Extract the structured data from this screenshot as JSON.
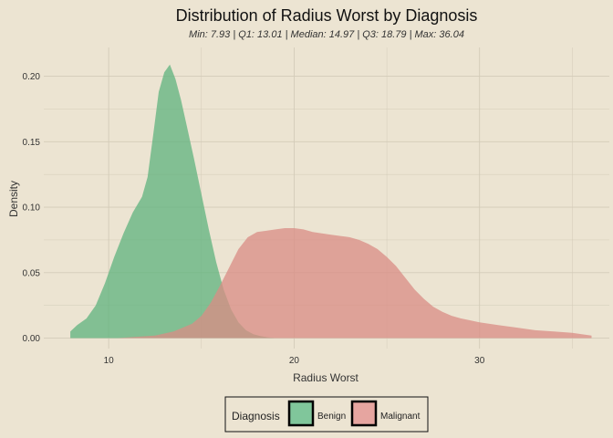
{
  "chart_data": {
    "type": "area",
    "title": "Distribution of Radius Worst by Diagnosis",
    "subtitle": "Min: 7.93 | Q1: 13.01 | Median: 14.97 | Q3: 18.79 | Max: 36.04",
    "xlabel": "Radius Worst",
    "ylabel": "Density",
    "xlim": [
      6.5,
      37
    ],
    "ylim": [
      -0.008,
      0.222
    ],
    "x_ticks": [
      10,
      20,
      30
    ],
    "x_tick_labels": [
      "10",
      "20",
      "30"
    ],
    "y_ticks": [
      0,
      0.05,
      0.1,
      0.15,
      0.2
    ],
    "y_tick_labels": [
      "0.00",
      "0.05",
      "0.10",
      "0.15",
      "0.20"
    ],
    "grid": true,
    "legend": {
      "title": "Diagnosis",
      "placement": "bottom",
      "entries": [
        "Benign",
        "Malignant"
      ]
    },
    "series": [
      {
        "name": "Benign",
        "color": "#5fb37e",
        "x": [
          7.93,
          8.3,
          8.8,
          9.3,
          9.8,
          10.3,
          10.8,
          11.3,
          11.8,
          12.1,
          12.4,
          12.7,
          13.0,
          13.3,
          13.6,
          13.9,
          14.2,
          14.6,
          15.0,
          15.4,
          15.8,
          16.2,
          16.6,
          17.0,
          17.4,
          17.8,
          18.2,
          18.6,
          19.0
        ],
        "y": [
          0.005,
          0.01,
          0.015,
          0.025,
          0.042,
          0.062,
          0.08,
          0.096,
          0.108,
          0.123,
          0.155,
          0.188,
          0.203,
          0.209,
          0.198,
          0.182,
          0.163,
          0.137,
          0.11,
          0.083,
          0.058,
          0.037,
          0.022,
          0.012,
          0.006,
          0.003,
          0.0015,
          0.0005,
          0.0
        ]
      },
      {
        "name": "Malignant",
        "color": "#d98c84",
        "x": [
          10.5,
          11.5,
          12.5,
          13.5,
          14.5,
          15.0,
          15.5,
          16.0,
          16.5,
          17.0,
          17.5,
          18.0,
          18.5,
          19.0,
          19.5,
          20.0,
          20.5,
          21.0,
          21.5,
          22.0,
          22.5,
          23.0,
          23.5,
          24.0,
          24.5,
          25.0,
          25.5,
          26.0,
          26.5,
          27.0,
          27.5,
          28.0,
          28.5,
          29.0,
          30.0,
          31.0,
          32.0,
          33.0,
          34.0,
          35.0,
          36.04
        ],
        "y": [
          0.0,
          0.001,
          0.002,
          0.005,
          0.011,
          0.017,
          0.027,
          0.04,
          0.054,
          0.068,
          0.077,
          0.081,
          0.082,
          0.083,
          0.084,
          0.084,
          0.083,
          0.081,
          0.08,
          0.079,
          0.078,
          0.077,
          0.075,
          0.072,
          0.068,
          0.062,
          0.055,
          0.046,
          0.037,
          0.03,
          0.024,
          0.02,
          0.017,
          0.015,
          0.012,
          0.01,
          0.008,
          0.006,
          0.005,
          0.004,
          0.002
        ]
      }
    ]
  }
}
